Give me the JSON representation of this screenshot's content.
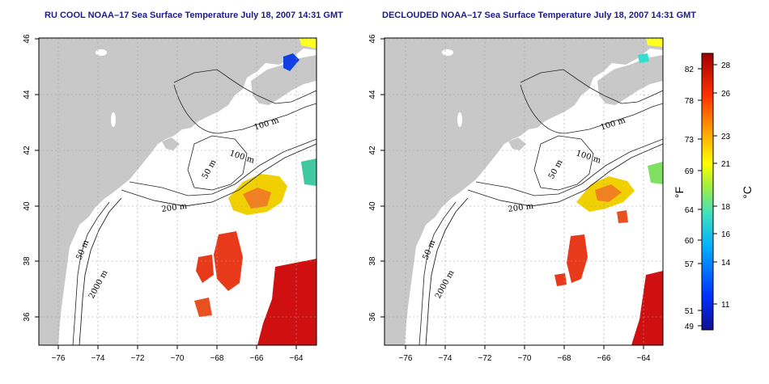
{
  "maps": [
    {
      "title": "RU COOL NOAA–17 Sea Surface Temperature July 18, 2007 14:31 GMT",
      "x_ticks": [
        "−76",
        "−74",
        "−72",
        "−70",
        "−68",
        "−66",
        "−64"
      ],
      "y_ticks": [
        "36",
        "38",
        "40",
        "42",
        "44",
        "46"
      ],
      "contour_labels": [
        "100 m",
        "100 m",
        "50 m",
        "200 m",
        "50 m",
        "2000 m"
      ]
    },
    {
      "title": "DECLOUDED NOAA–17 Sea Surface Temperature July 18, 2007 14:31 GMT",
      "x_ticks": [
        "−76",
        "−74",
        "−72",
        "−70",
        "−68",
        "−66",
        "−64"
      ],
      "y_ticks": [
        "36",
        "38",
        "40",
        "42",
        "44",
        "46"
      ],
      "contour_labels": [
        "100 m",
        "100 m",
        "50 m",
        "200 m",
        "50 m",
        "2000 m"
      ]
    }
  ],
  "colorbar": {
    "fahrenheit_label": "°F",
    "celsius_label": "°C",
    "fahrenheit_ticks": [
      "82",
      "78",
      "73",
      "69",
      "64",
      "60",
      "57",
      "51",
      "49"
    ],
    "celsius_ticks": [
      "28",
      "26",
      "23",
      "21",
      "18",
      "16",
      "14",
      "11"
    ]
  },
  "colors": {
    "land": "#c8c8c8",
    "ocean": "#ffffff",
    "grid": "#a0a0a0",
    "title": "#1a1a8c",
    "warm": "#e83a1a",
    "hot": "#d01010",
    "mid": "#f0d000",
    "cool": "#40c8e0",
    "cold": "#0a20c0"
  }
}
